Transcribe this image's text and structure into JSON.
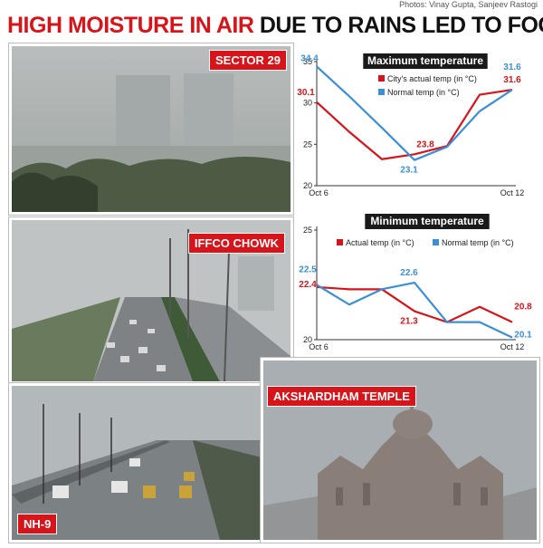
{
  "credit": "Photos: Vinay Gupta, Sanjeev Rastogi",
  "headline": {
    "part1": "HIGH MOISTURE IN AIR",
    "part2": "DUE TO RAINS LED TO FOG"
  },
  "photos": {
    "sector29": "SECTOR 29",
    "iffco": "IFFCO CHOWK",
    "nh9": "NH-9",
    "akshardham": "AKSHARDHAM TEMPLE"
  },
  "colors": {
    "red": "#d7141a",
    "blue": "#3a8fd6"
  },
  "chart_data": [
    {
      "type": "line",
      "title": "Maximum temperature",
      "x": [
        1,
        2,
        3,
        4,
        5,
        6,
        7
      ],
      "xtick_labels": [
        "Oct 6",
        "Oct 12"
      ],
      "yticks": [
        20,
        25,
        30,
        35
      ],
      "ylim": [
        20,
        35
      ],
      "series": [
        {
          "name": "City's actual temp (in °C)",
          "color": "#d7141a",
          "values": [
            30.1,
            26.5,
            23.2,
            23.8,
            24.8,
            31.0,
            31.6
          ],
          "labels": [
            {
              "i": 0,
              "text": "30.1"
            },
            {
              "i": 3,
              "text": "23.8"
            },
            {
              "i": 6,
              "text": "31.6"
            }
          ]
        },
        {
          "name": "Normal temp (in °C)",
          "color": "#3a8fd6",
          "values": [
            34.4,
            30.8,
            27.0,
            23.1,
            24.7,
            29.0,
            31.6
          ],
          "labels": [
            {
              "i": 0,
              "text": "34.4"
            },
            {
              "i": 3,
              "text": "23.1"
            },
            {
              "i": 6,
              "text": "31.6"
            }
          ]
        }
      ]
    },
    {
      "type": "line",
      "title": "Minimum temperature",
      "x": [
        1,
        2,
        3,
        4,
        5,
        6,
        7
      ],
      "xtick_labels": [
        "Oct 6",
        "Oct 12"
      ],
      "yticks": [
        20,
        25
      ],
      "ylim": [
        20,
        25
      ],
      "series": [
        {
          "name": "Actual temp (in °C)",
          "color": "#d7141a",
          "values": [
            22.4,
            22.3,
            22.3,
            21.3,
            20.8,
            21.5,
            20.8
          ],
          "labels": [
            {
              "i": 0,
              "text": "22.4"
            },
            {
              "i": 3,
              "text": "21.3"
            },
            {
              "i": 6,
              "text": "20.8"
            }
          ]
        },
        {
          "name": "Normal temp (in °C)",
          "color": "#3a8fd6",
          "values": [
            22.5,
            21.6,
            22.3,
            22.6,
            20.8,
            20.8,
            20.1
          ],
          "labels": [
            {
              "i": 0,
              "text": "22.5"
            },
            {
              "i": 3,
              "text": "22.6"
            },
            {
              "i": 6,
              "text": "20.1"
            }
          ]
        }
      ]
    }
  ]
}
